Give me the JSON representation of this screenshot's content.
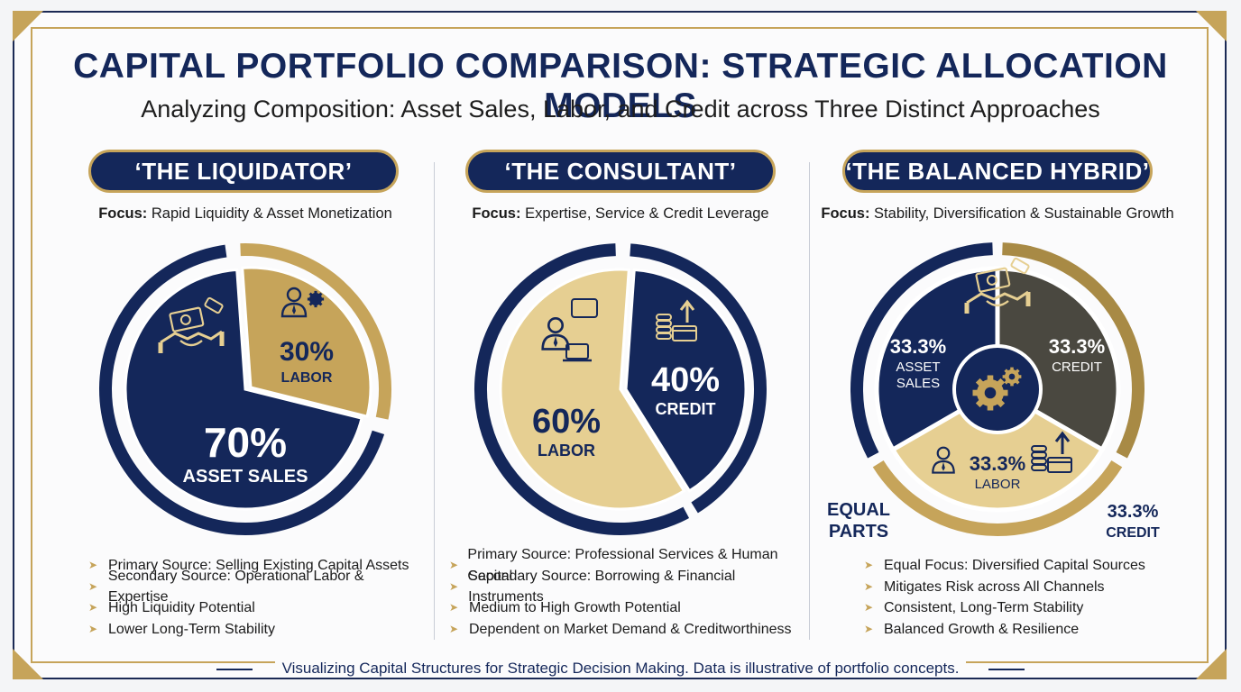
{
  "title": "CAPITAL PORTFOLIO COMPARISON: STRATEGIC ALLOCATION MODELS",
  "subtitle": "Analyzing Composition: Asset Sales, Labor, and Credit across Three Distinct Approaches",
  "footer": "Visualizing Capital Structures for Strategic Decision Making. Data is illustrative of portfolio concepts.",
  "colors": {
    "navy": "#14275a",
    "gold": "#c6a45a",
    "gold_light": "#e6cf92",
    "gold_dark": "#a88a45"
  },
  "panels": [
    {
      "name": "‘THE LIQUIDATOR’",
      "focus_label": "Focus:",
      "focus_text": "Rapid Liquidity & Asset Monetization",
      "bullets": [
        "Primary Source: Selling Existing Capital Assets",
        "Secondary Source: Operational Labor & Expertise",
        "High Liquidity Potential",
        "Lower Long-Term Stability"
      ]
    },
    {
      "name": "‘THE CONSULTANT’",
      "focus_label": "Focus:",
      "focus_text": "Expertise, Service & Credit Leverage",
      "bullets": [
        "Primary Source: Professional Services & Human Capital",
        "Secondary Source: Borrowing & Financial Instruments",
        "Medium to High Growth Potential",
        "Dependent on Market Demand & Creditworthiness"
      ]
    },
    {
      "name": "‘THE BALANCED HYBRID’",
      "focus_label": "Focus:",
      "focus_text": "Stability, Diversification & Sustainable Growth",
      "bullets": [
        "Equal Focus: Diversified Capital Sources",
        "Mitigates Risk across All Channels",
        "Consistent, Long-Term Stability",
        "Balanced Growth & Resilience"
      ],
      "extra_labels": {
        "equal_line1": "EQUAL",
        "equal_line2": "PARTS",
        "side_pct": "33.3%",
        "side_name": "CREDIT"
      }
    }
  ],
  "chart_data": [
    {
      "type": "pie",
      "title": "‘THE LIQUIDATOR’",
      "slices": [
        {
          "label": "ASSET SALES",
          "value": 70,
          "display": "70%",
          "color": "#14275a"
        },
        {
          "label": "LABOR",
          "value": 30,
          "display": "30%",
          "color": "#c6a45a"
        }
      ],
      "icons": [
        "handshake-money-icon",
        "businessman-gear-icon"
      ]
    },
    {
      "type": "pie",
      "title": "‘THE CONSULTANT’",
      "slices": [
        {
          "label": "CREDIT",
          "value": 40,
          "display": "40%",
          "color": "#14275a"
        },
        {
          "label": "LABOR",
          "value": 60,
          "display": "60%",
          "color": "#c6a45a"
        }
      ],
      "icons": [
        "coins-growth-icon",
        "consultant-laptop-icon"
      ]
    },
    {
      "type": "pie",
      "title": "‘THE BALANCED HYBRID’",
      "slices": [
        {
          "label": "CREDIT",
          "value": 33.3,
          "display": "33.3%",
          "color": "#4a4840"
        },
        {
          "label": "LABOR",
          "value": 33.3,
          "display": "33.3%",
          "color": "#c6a45a"
        },
        {
          "label": "ASSET SALES",
          "value": 33.3,
          "display": "33.3%",
          "color": "#14275a"
        }
      ],
      "icons": [
        "handshake-money-icon",
        "gears-icon",
        "businessman-gear-icon",
        "coins-growth-icon"
      ]
    }
  ]
}
